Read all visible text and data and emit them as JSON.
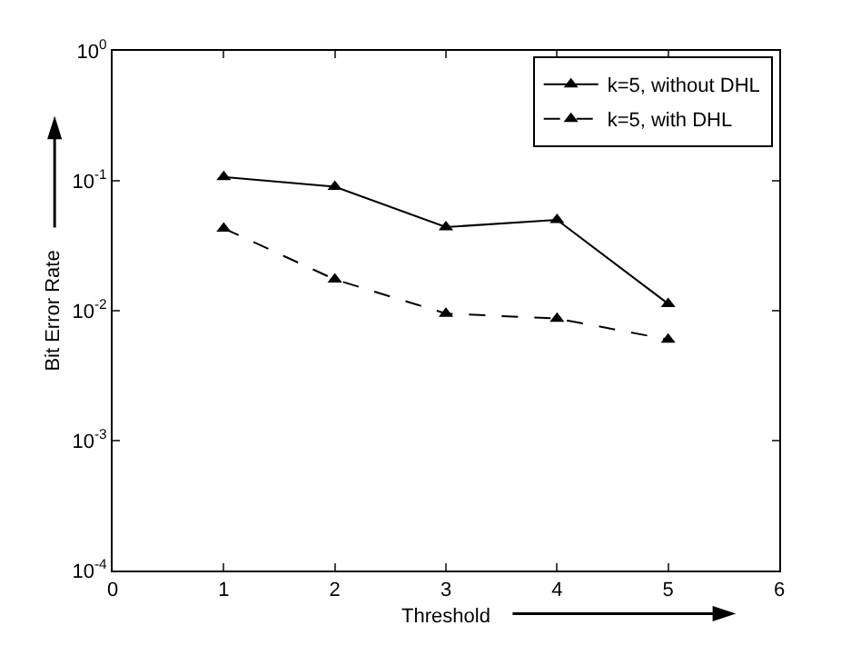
{
  "chart_data": {
    "type": "line",
    "xlabel": "Threshold",
    "ylabel": "Bit Error Rate",
    "x": [
      1,
      2,
      3,
      4,
      5
    ],
    "series": [
      {
        "name": "k=5, without DHL",
        "color": "#000000",
        "line_style": "solid",
        "values": [
          0.107,
          0.09,
          0.044,
          0.05,
          0.0113
        ]
      },
      {
        "name": "k=5, with DHL",
        "color": "#000000",
        "line_style": "dashed",
        "values": [
          0.043,
          0.0174,
          0.0095,
          0.0087,
          0.006
        ]
      }
    ],
    "log": "y",
    "marker": "triangle",
    "legend": "top right",
    "xlim": [
      0,
      6
    ],
    "xticks": [
      0,
      1,
      2,
      3,
      4,
      5,
      6
    ],
    "ylim": [
      0.0001,
      1
    ],
    "yticks": [
      {
        "value": 0.0001,
        "label": "10$^{-4}$"
      },
      {
        "value": 0.001,
        "label": "10$^{-3}$"
      },
      {
        "value": 0.01,
        "label": "10$^{-2}$"
      },
      {
        "value": 0.1,
        "label": "10$^{-1}$"
      },
      {
        "value": 1,
        "label": "10$^{0}$"
      }
    ]
  }
}
